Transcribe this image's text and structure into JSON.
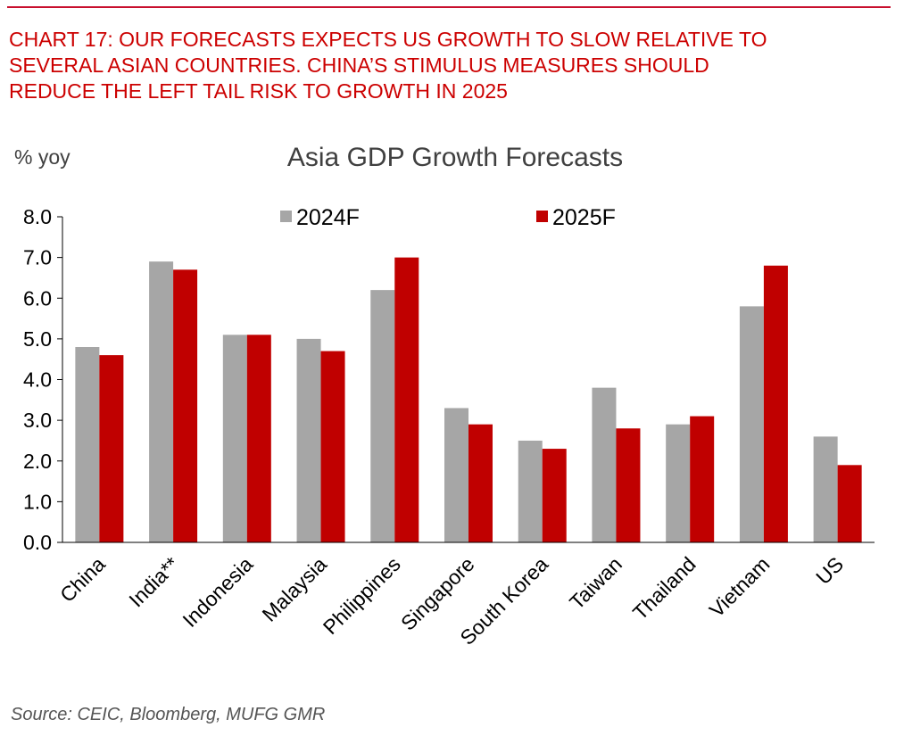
{
  "headline_lines": [
    "CHART 17: OUR FORECASTS EXPECTS US GROWTH TO SLOW RELATIVE TO",
    "SEVERAL ASIAN COUNTRIES. CHINA’S STIMULUS MEASURES SHOULD",
    "REDUCE THE LEFT TAIL RISK TO GROWTH IN 2025"
  ],
  "source": "Source: CEIC, Bloomberg, MUFG GMR",
  "colors": {
    "headline": "#cc0000",
    "series_2024": "#a6a6a6",
    "series_2025": "#c00000",
    "axis": "#000000"
  },
  "chart_data": {
    "type": "bar",
    "title": "Asia GDP Growth Forecasts",
    "ylabel": "% yoy",
    "xlabel": "",
    "ylim": [
      0,
      8
    ],
    "yticks": [
      "0.0",
      "1.0",
      "2.0",
      "3.0",
      "4.0",
      "5.0",
      "6.0",
      "7.0",
      "8.0"
    ],
    "categories": [
      "China",
      "India**",
      "Indonesia",
      "Malaysia",
      "Philippines",
      "Singapore",
      "South Korea",
      "Taiwan",
      "Thailand",
      "Vietnam",
      "US"
    ],
    "series": [
      {
        "name": "2024F",
        "values": [
          4.8,
          6.9,
          5.1,
          5.0,
          6.2,
          3.3,
          2.5,
          3.8,
          2.9,
          5.8,
          2.6
        ]
      },
      {
        "name": "2025F",
        "values": [
          4.6,
          6.7,
          5.1,
          4.7,
          7.0,
          2.9,
          2.3,
          2.8,
          3.1,
          6.8,
          1.9
        ]
      }
    ],
    "legend": "top",
    "grid": false
  }
}
